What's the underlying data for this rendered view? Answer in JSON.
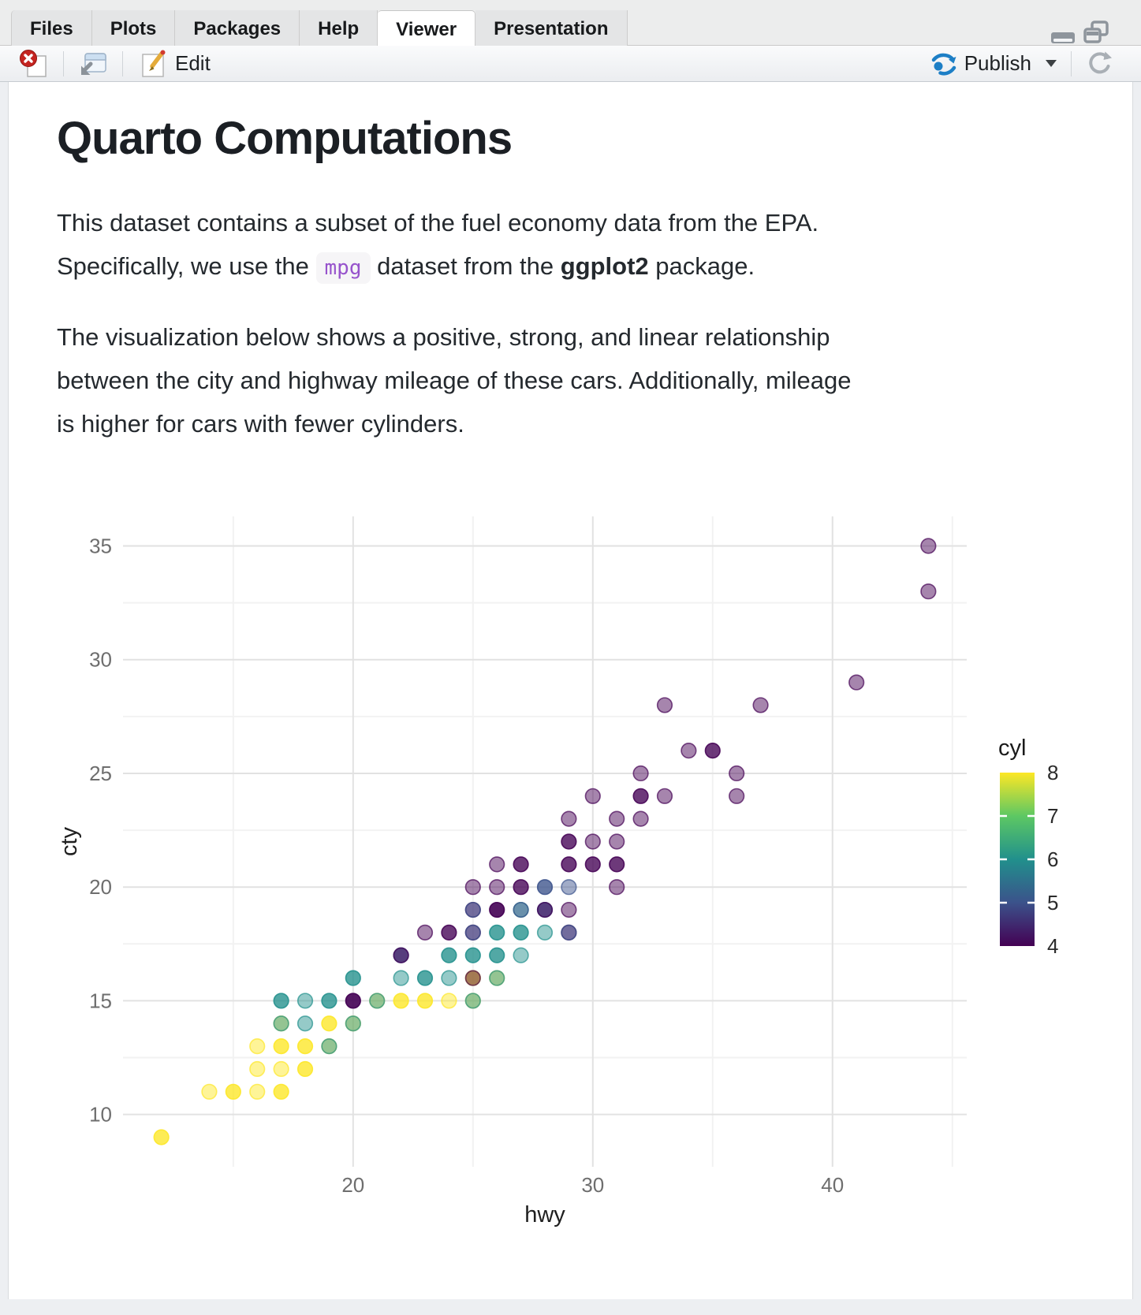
{
  "window": {
    "tabs": [
      {
        "label": "Files"
      },
      {
        "label": "Plots"
      },
      {
        "label": "Packages"
      },
      {
        "label": "Help"
      },
      {
        "label": "Viewer"
      },
      {
        "label": "Presentation"
      }
    ],
    "active_tab": "Viewer"
  },
  "toolbar": {
    "edit_label": "Edit",
    "publish_label": "Publish"
  },
  "document": {
    "title": "Quarto Computations",
    "p1_line1": "This dataset contains a subset of the fuel economy data from the EPA.",
    "p1_before_code": "Specifically, we use the ",
    "p1_code": "mpg",
    "p1_mid": " dataset from the ",
    "p1_bold": "ggplot2",
    "p1_after": " package.",
    "p2_line1": "The visualization below shows a positive, strong, and linear relationship",
    "p2_line2": "between the city and highway mileage of these cars. Additionally, mileage",
    "p2_line3": "is higher for cars with fewer cylinders."
  },
  "chart_data": {
    "type": "scatter",
    "xlabel": "hwy",
    "ylabel": "cty",
    "x_ticks": [
      20,
      30,
      40
    ],
    "x_minor_ticks": [
      15,
      25,
      35,
      45
    ],
    "x_range": [
      10.4,
      45.6
    ],
    "y_ticks": [
      10,
      15,
      20,
      25,
      30,
      35
    ],
    "y_minor_ticks": [
      12.5,
      17.5,
      22.5,
      27.5,
      32.5
    ],
    "y_range": [
      7.7,
      36.3
    ],
    "grid": true,
    "legend": {
      "title": "cyl",
      "min": 4,
      "max": 8,
      "labels": [
        8,
        7,
        6,
        5,
        4
      ],
      "tick_values": [
        7,
        6,
        5
      ],
      "position": "right"
    },
    "viridis_colors": {
      "4": "#440154",
      "5": "#3B528B",
      "6": "#21908C",
      "7": "#5DC863",
      "8": "#FDE725"
    },
    "points_format": [
      "hwy",
      "cty",
      "cyl",
      "overlap_count"
    ],
    "points": [
      [
        12,
        9,
        8,
        2
      ],
      [
        14,
        11,
        8,
        1
      ],
      [
        15,
        11,
        8,
        2
      ],
      [
        16,
        11,
        8,
        1
      ],
      [
        17,
        11,
        8,
        2
      ],
      [
        16,
        12,
        8,
        1
      ],
      [
        17,
        12,
        8,
        1
      ],
      [
        18,
        12,
        8,
        2
      ],
      [
        16,
        13,
        8,
        1
      ],
      [
        17,
        13,
        8,
        2
      ],
      [
        18,
        13,
        8,
        2
      ],
      [
        19,
        13,
        8,
        1
      ],
      [
        19,
        13,
        6,
        1
      ],
      [
        17,
        14,
        8,
        1
      ],
      [
        17,
        14,
        6,
        1
      ],
      [
        18,
        14,
        6,
        1
      ],
      [
        19,
        14,
        8,
        2
      ],
      [
        20,
        14,
        8,
        1
      ],
      [
        20,
        14,
        6,
        1
      ],
      [
        17,
        15,
        6,
        2
      ],
      [
        18,
        15,
        6,
        1
      ],
      [
        19,
        15,
        6,
        2
      ],
      [
        20,
        15,
        4,
        3
      ],
      [
        21,
        15,
        8,
        1
      ],
      [
        21,
        15,
        6,
        1
      ],
      [
        22,
        15,
        8,
        2
      ],
      [
        23,
        15,
        8,
        2
      ],
      [
        24,
        15,
        8,
        1
      ],
      [
        25,
        15,
        8,
        1
      ],
      [
        25,
        15,
        6,
        1
      ],
      [
        20,
        16,
        6,
        2
      ],
      [
        22,
        16,
        6,
        1
      ],
      [
        23,
        16,
        6,
        2
      ],
      [
        24,
        16,
        6,
        1
      ],
      [
        25,
        16,
        8,
        2
      ],
      [
        25,
        16,
        4,
        1
      ],
      [
        26,
        16,
        8,
        1
      ],
      [
        26,
        16,
        6,
        1
      ],
      [
        22,
        17,
        5,
        2
      ],
      [
        22,
        17,
        4,
        1
      ],
      [
        24,
        17,
        6,
        2
      ],
      [
        25,
        17,
        6,
        2
      ],
      [
        26,
        17,
        6,
        2
      ],
      [
        27,
        17,
        6,
        1
      ],
      [
        23,
        18,
        4,
        1
      ],
      [
        24,
        18,
        4,
        2
      ],
      [
        25,
        18,
        4,
        1
      ],
      [
        25,
        18,
        5,
        1
      ],
      [
        26,
        18,
        6,
        2
      ],
      [
        27,
        18,
        6,
        2
      ],
      [
        28,
        18,
        6,
        1
      ],
      [
        29,
        18,
        4,
        1
      ],
      [
        29,
        18,
        5,
        1
      ],
      [
        25,
        19,
        4,
        1
      ],
      [
        25,
        19,
        5,
        1
      ],
      [
        26,
        19,
        4,
        3
      ],
      [
        27,
        19,
        6,
        1
      ],
      [
        27,
        19,
        5,
        1
      ],
      [
        28,
        19,
        5,
        2
      ],
      [
        28,
        19,
        4,
        1
      ],
      [
        29,
        19,
        4,
        1
      ],
      [
        25,
        20,
        4,
        1
      ],
      [
        26,
        20,
        4,
        1
      ],
      [
        27,
        20,
        4,
        2
      ],
      [
        28,
        20,
        5,
        2
      ],
      [
        29,
        20,
        5,
        1
      ],
      [
        31,
        20,
        4,
        1
      ],
      [
        26,
        21,
        4,
        1
      ],
      [
        27,
        21,
        4,
        2
      ],
      [
        29,
        21,
        4,
        2
      ],
      [
        30,
        21,
        4,
        2
      ],
      [
        31,
        21,
        4,
        2
      ],
      [
        29,
        22,
        4,
        2
      ],
      [
        30,
        22,
        4,
        1
      ],
      [
        31,
        22,
        4,
        1
      ],
      [
        29,
        23,
        4,
        1
      ],
      [
        31,
        23,
        4,
        1
      ],
      [
        32,
        23,
        4,
        1
      ],
      [
        30,
        24,
        4,
        1
      ],
      [
        32,
        24,
        4,
        2
      ],
      [
        33,
        24,
        4,
        1
      ],
      [
        36,
        24,
        4,
        1
      ],
      [
        32,
        25,
        4,
        1
      ],
      [
        36,
        25,
        4,
        1
      ],
      [
        34,
        26,
        4,
        1
      ],
      [
        35,
        26,
        4,
        2
      ],
      [
        33,
        28,
        4,
        1
      ],
      [
        37,
        28,
        4,
        1
      ],
      [
        41,
        29,
        4,
        1
      ],
      [
        44,
        33,
        4,
        1
      ],
      [
        44,
        35,
        4,
        1
      ]
    ]
  }
}
